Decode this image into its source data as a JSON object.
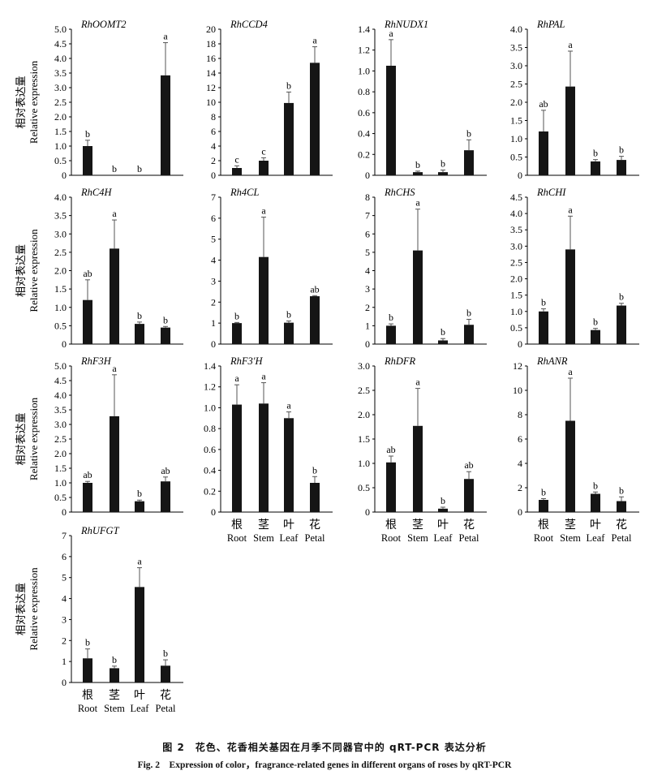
{
  "caption": {
    "cn": "图 2　花色、花香相关基因在月季不同器官中的 qRT-PCR 表达分析",
    "en": "Fig. 2　Expression of color，fragrance-related genes in different organs of roses by qRT-PCR"
  },
  "axis_label": {
    "cn": "相对表达量",
    "en": "Relative expression"
  },
  "categories": [
    {
      "cn": "根",
      "en": "Root"
    },
    {
      "cn": "茎",
      "en": "Stem"
    },
    {
      "cn": "叶",
      "en": "Leaf"
    },
    {
      "cn": "花",
      "en": "Petal"
    }
  ],
  "chart_data": [
    {
      "type": "bar",
      "title": "RhOOMT2",
      "ylabel": "Relative expression",
      "ylim": [
        0,
        5
      ],
      "ticks": [
        "0",
        "0.5",
        "1.0",
        "1.5",
        "2.0",
        "2.5",
        "3.0",
        "3.5",
        "4.0",
        "4.5",
        "5.0"
      ],
      "values": [
        1.0,
        0,
        0,
        3.42
      ],
      "errors": [
        0.2,
        0,
        0,
        1.12
      ],
      "letters": [
        "b",
        "b",
        "b",
        "a"
      ]
    },
    {
      "type": "bar",
      "title": "RhCCD4",
      "ylabel": "Relative expression",
      "ylim": [
        0,
        20
      ],
      "ticks": [
        "0",
        "2",
        "4",
        "6",
        "8",
        "10",
        "12",
        "14",
        "16",
        "18",
        "20"
      ],
      "values": [
        1.0,
        2.0,
        9.9,
        15.4
      ],
      "errors": [
        0.3,
        0.4,
        1.5,
        2.2
      ],
      "letters": [
        "c",
        "c",
        "b",
        "a"
      ]
    },
    {
      "type": "bar",
      "title": "RhNUDX1",
      "ylabel": "Relative expression",
      "ylim": [
        0,
        1.4
      ],
      "ticks": [
        "0",
        "0.2",
        "0.4",
        "0.6",
        "0.8",
        "1.0",
        "1.2",
        "1.4"
      ],
      "values": [
        1.05,
        0.03,
        0.03,
        0.24
      ],
      "errors": [
        0.25,
        0.01,
        0.02,
        0.1
      ],
      "letters": [
        "a",
        "b",
        "b",
        "b"
      ]
    },
    {
      "type": "bar",
      "title": "RhPAL",
      "ylabel": "Relative expression",
      "ylim": [
        0,
        4
      ],
      "ticks": [
        "0",
        "0.5",
        "1.0",
        "1.5",
        "2.0",
        "2.5",
        "3.0",
        "3.5",
        "4.0"
      ],
      "values": [
        1.2,
        2.43,
        0.38,
        0.42
      ],
      "errors": [
        0.58,
        0.97,
        0.05,
        0.1
      ],
      "letters": [
        "ab",
        "a",
        "b",
        "b"
      ]
    },
    {
      "type": "bar",
      "title": "RhC4H",
      "ylabel": "Relative expression",
      "ylim": [
        0,
        4
      ],
      "ticks": [
        "0",
        "0.5",
        "1.0",
        "1.5",
        "2.0",
        "2.5",
        "3.0",
        "3.5",
        "4.0"
      ],
      "values": [
        1.2,
        2.6,
        0.55,
        0.45
      ],
      "errors": [
        0.55,
        0.78,
        0.05,
        0.03
      ],
      "letters": [
        "ab",
        "a",
        "b",
        "b"
      ]
    },
    {
      "type": "bar",
      "title": "Rh4CL",
      "ylabel": "Relative expression",
      "ylim": [
        0,
        7
      ],
      "ticks": [
        "0",
        "1",
        "2",
        "3",
        "4",
        "5",
        "6",
        "7"
      ],
      "values": [
        1.0,
        4.15,
        1.02,
        2.28
      ],
      "errors": [
        0.03,
        1.9,
        0.08,
        0.03
      ],
      "letters": [
        "b",
        "a",
        "b",
        "ab"
      ]
    },
    {
      "type": "bar",
      "title": "RhCHS",
      "ylabel": "Relative expression",
      "ylim": [
        0,
        8
      ],
      "ticks": [
        "0",
        "1",
        "2",
        "3",
        "4",
        "5",
        "6",
        "7",
        "8"
      ],
      "values": [
        1.0,
        5.1,
        0.2,
        1.05
      ],
      "errors": [
        0.1,
        2.25,
        0.1,
        0.3
      ],
      "letters": [
        "b",
        "a",
        "b",
        "b"
      ]
    },
    {
      "type": "bar",
      "title": "RhCHI",
      "ylabel": "Relative expression",
      "ylim": [
        0,
        4.5
      ],
      "ticks": [
        "0",
        "0.5",
        "1.0",
        "1.5",
        "2.0",
        "2.5",
        "3.0",
        "3.5",
        "4.0",
        "4.5"
      ],
      "values": [
        1.0,
        2.9,
        0.43,
        1.18
      ],
      "errors": [
        0.08,
        1.02,
        0.05,
        0.07
      ],
      "letters": [
        "b",
        "a",
        "b",
        "b"
      ]
    },
    {
      "type": "bar",
      "title": "RhF3H",
      "ylabel": "Relative expression",
      "ylim": [
        0,
        5
      ],
      "ticks": [
        "0",
        "0.5",
        "1.0",
        "1.5",
        "2.0",
        "2.5",
        "3.0",
        "3.5",
        "4.0",
        "4.5",
        "5.0"
      ],
      "values": [
        1.0,
        3.28,
        0.37,
        1.05
      ],
      "errors": [
        0.05,
        1.42,
        0.04,
        0.15
      ],
      "letters": [
        "ab",
        "a",
        "b",
        "ab"
      ]
    },
    {
      "type": "bar",
      "title": "RhF3'H",
      "ylabel": "Relative expression",
      "ylim": [
        0,
        1.4
      ],
      "ticks": [
        "0",
        "0.2",
        "0.4",
        "0.6",
        "0.8",
        "1.0",
        "1.2",
        "1.4"
      ],
      "values": [
        1.03,
        1.04,
        0.9,
        0.28
      ],
      "errors": [
        0.19,
        0.2,
        0.06,
        0.06
      ],
      "letters": [
        "a",
        "a",
        "a",
        "b"
      ]
    },
    {
      "type": "bar",
      "title": "RhDFR",
      "ylabel": "Relative expression",
      "ylim": [
        0,
        3
      ],
      "ticks": [
        "0",
        "0.5",
        "1.0",
        "1.5",
        "2.0",
        "2.5",
        "3.0"
      ],
      "values": [
        1.02,
        1.77,
        0.07,
        0.68
      ],
      "errors": [
        0.13,
        0.77,
        0.03,
        0.15
      ],
      "letters": [
        "ab",
        "a",
        "b",
        "ab"
      ]
    },
    {
      "type": "bar",
      "title": "RhANR",
      "ylabel": "Relative expression",
      "ylim": [
        0,
        12
      ],
      "ticks": [
        "0",
        "2",
        "4",
        "6",
        "8",
        "10",
        "12"
      ],
      "values": [
        1.0,
        7.5,
        1.5,
        0.9
      ],
      "errors": [
        0.1,
        3.5,
        0.15,
        0.35
      ],
      "letters": [
        "b",
        "a",
        "b",
        "b"
      ]
    },
    {
      "type": "bar",
      "title": "RhUFGT",
      "ylabel": "Relative expression",
      "ylim": [
        0,
        7
      ],
      "ticks": [
        "0",
        "1",
        "2",
        "3",
        "4",
        "5",
        "6",
        "7"
      ],
      "values": [
        1.15,
        0.68,
        4.55,
        0.8
      ],
      "errors": [
        0.45,
        0.1,
        0.92,
        0.28
      ],
      "letters": [
        "b",
        "b",
        "a",
        "b"
      ]
    }
  ]
}
